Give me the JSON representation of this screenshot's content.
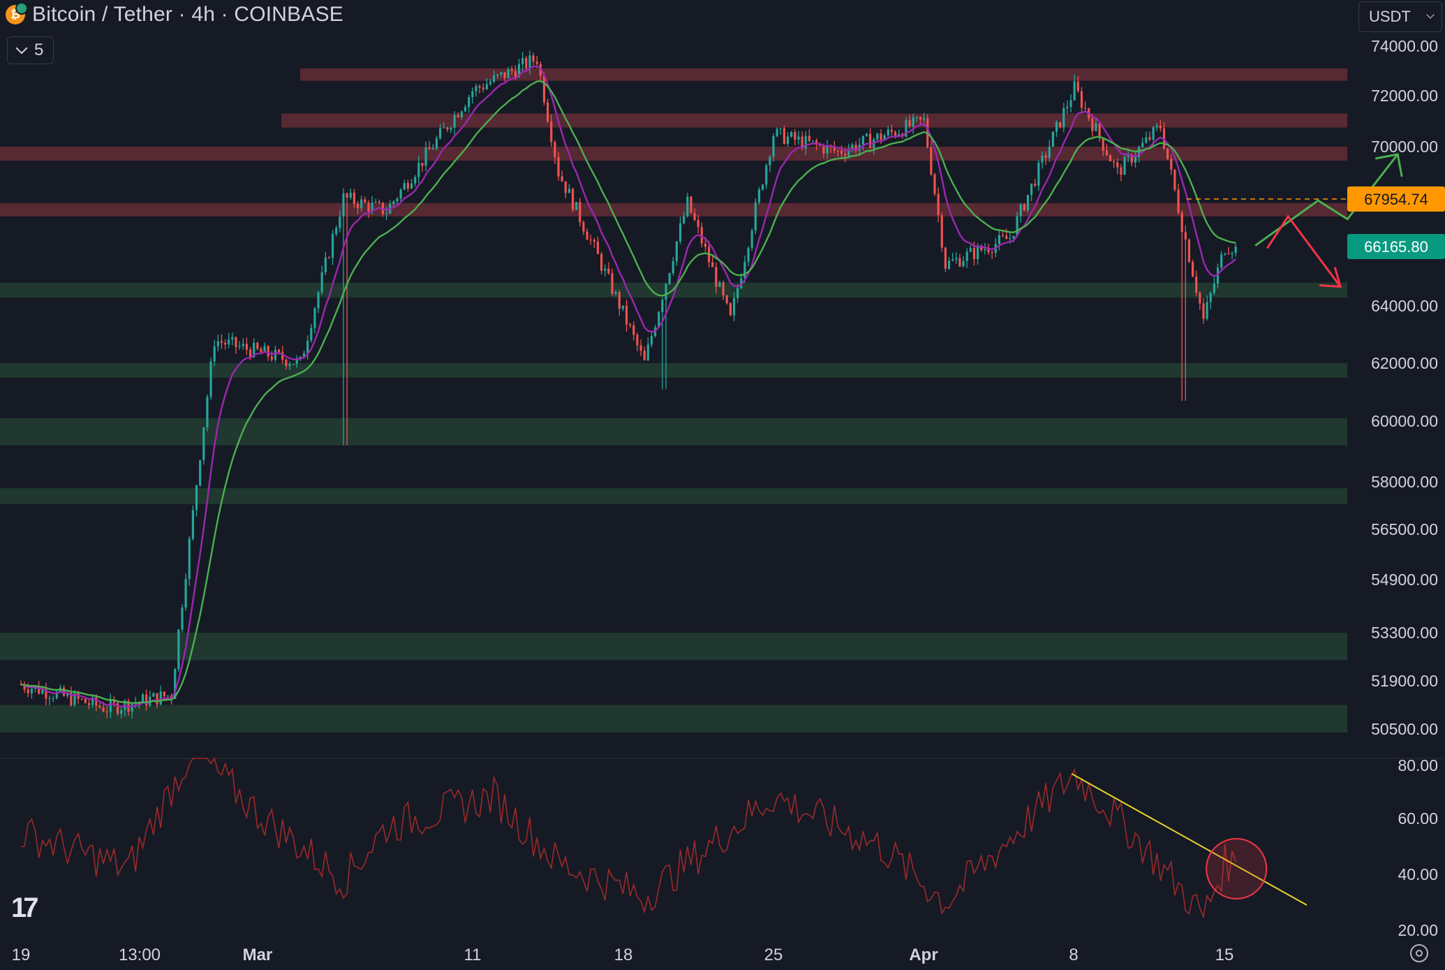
{
  "header": {
    "title": "Bitcoin / Tether · 4h · COINBASE",
    "coin_icon": "bitcoin-icon",
    "indicators_toggle_count": "5"
  },
  "currency": {
    "selected": "USDT"
  },
  "colors": {
    "background": "#161a25",
    "bull": "#26a69a",
    "bear": "#ef5350",
    "resistance_zone": "#5b2a33",
    "support_zone": "#213a2f",
    "ema_fast": "#9c27b0",
    "ema_slow": "#4caf50",
    "rsi_line": "#9b2a2a",
    "trendline": "#e6d42a",
    "price_label_orange": "#ff9800",
    "price_label_green": "#089981",
    "arrow_up": "#4caf50",
    "arrow_down": "#f23645"
  },
  "chart_data": {
    "type": "candlestick",
    "y_axis_labels": [
      "74000.00",
      "72000.00",
      "70000.00",
      "64000.00",
      "62000.00",
      "60000.00",
      "58000.00",
      "56500.00",
      "54900.00",
      "53300.00",
      "51900.00",
      "50500.00"
    ],
    "x_axis_labels": [
      "19",
      "13:00",
      "Mar",
      "11",
      "18",
      "25",
      "Apr",
      "8",
      "15"
    ],
    "price_labels": [
      {
        "value": "67954.74",
        "kind": "reference-line",
        "color": "#ff9800"
      },
      {
        "value": "66165.80",
        "kind": "last-price",
        "color": "#089981"
      }
    ],
    "resistance_zones": [
      [
        72600,
        73100
      ],
      [
        70750,
        71300
      ],
      [
        69450,
        70000
      ],
      [
        67300,
        67800
      ]
    ],
    "support_zones": [
      [
        64300,
        64850
      ],
      [
        61500,
        62000
      ],
      [
        59200,
        60100
      ],
      [
        57300,
        57800
      ],
      [
        52500,
        53300
      ],
      [
        50400,
        51200
      ]
    ],
    "price_path_keypoints": [
      {
        "date": "Feb 19",
        "close": 51800
      },
      {
        "date": "Feb 23",
        "close": 51100
      },
      {
        "date": "Feb 26",
        "close": 51500
      },
      {
        "date": "Feb 27",
        "close": 57000
      },
      {
        "date": "Feb 28",
        "close": 62800
      },
      {
        "date": "Mar 3",
        "close": 62000
      },
      {
        "date": "Mar 5",
        "close": 68000
      },
      {
        "date": "Mar 5",
        "low": 59200
      },
      {
        "date": "Mar 7",
        "close": 67500
      },
      {
        "date": "Mar 11",
        "close": 72200
      },
      {
        "date": "Mar 14",
        "close": 73500
      },
      {
        "date": "Mar 15",
        "close": 69000
      },
      {
        "date": "Mar 19",
        "close": 62000
      },
      {
        "date": "Mar 20",
        "low": 61100
      },
      {
        "date": "Mar 21",
        "close": 67800
      },
      {
        "date": "Mar 23",
        "close": 63500
      },
      {
        "date": "Mar 25",
        "close": 70500
      },
      {
        "date": "Mar 28",
        "close": 69800
      },
      {
        "date": "Apr 1",
        "close": 71000
      },
      {
        "date": "Apr 2",
        "close": 65500
      },
      {
        "date": "Apr 5",
        "close": 66500
      },
      {
        "date": "Apr 8",
        "close": 72300
      },
      {
        "date": "Apr 10",
        "close": 69000
      },
      {
        "date": "Apr 12",
        "close": 70800
      },
      {
        "date": "Apr 13",
        "close": 67000
      },
      {
        "date": "Apr 14",
        "close": 63500
      },
      {
        "date": "Apr 13",
        "low": 60700
      },
      {
        "date": "Apr 15",
        "close": 66165.8
      }
    ],
    "projection": {
      "bullish_path_prices": [
        66200,
        67900,
        67200,
        69700
      ],
      "bearish_path_prices": [
        66100,
        67300,
        64700
      ]
    },
    "rsi": {
      "y_axis_labels": [
        "80.00",
        "60.00",
        "40.00",
        "20.00"
      ],
      "range": [
        20,
        80
      ],
      "keypoints": [
        {
          "date": "Feb 19",
          "value": 55
        },
        {
          "date": "Feb 24",
          "value": 42
        },
        {
          "date": "Feb 27",
          "value": 85
        },
        {
          "date": "Mar 1",
          "value": 62
        },
        {
          "date": "Mar 5",
          "value": 38
        },
        {
          "date": "Mar 7",
          "value": 57
        },
        {
          "date": "Mar 12",
          "value": 68
        },
        {
          "date": "Mar 15",
          "value": 44
        },
        {
          "date": "Mar 19",
          "value": 32
        },
        {
          "date": "Mar 25",
          "value": 68
        },
        {
          "date": "Mar 30",
          "value": 50
        },
        {
          "date": "Apr 2",
          "value": 30
        },
        {
          "date": "Apr 8",
          "value": 76
        },
        {
          "date": "Apr 11",
          "value": 52
        },
        {
          "date": "Apr 14",
          "value": 25
        },
        {
          "date": "Apr 15",
          "value": 44
        }
      ],
      "trendline_values": [
        76,
        29
      ],
      "highlight_circle": "rsi-breakout-circle"
    }
  }
}
